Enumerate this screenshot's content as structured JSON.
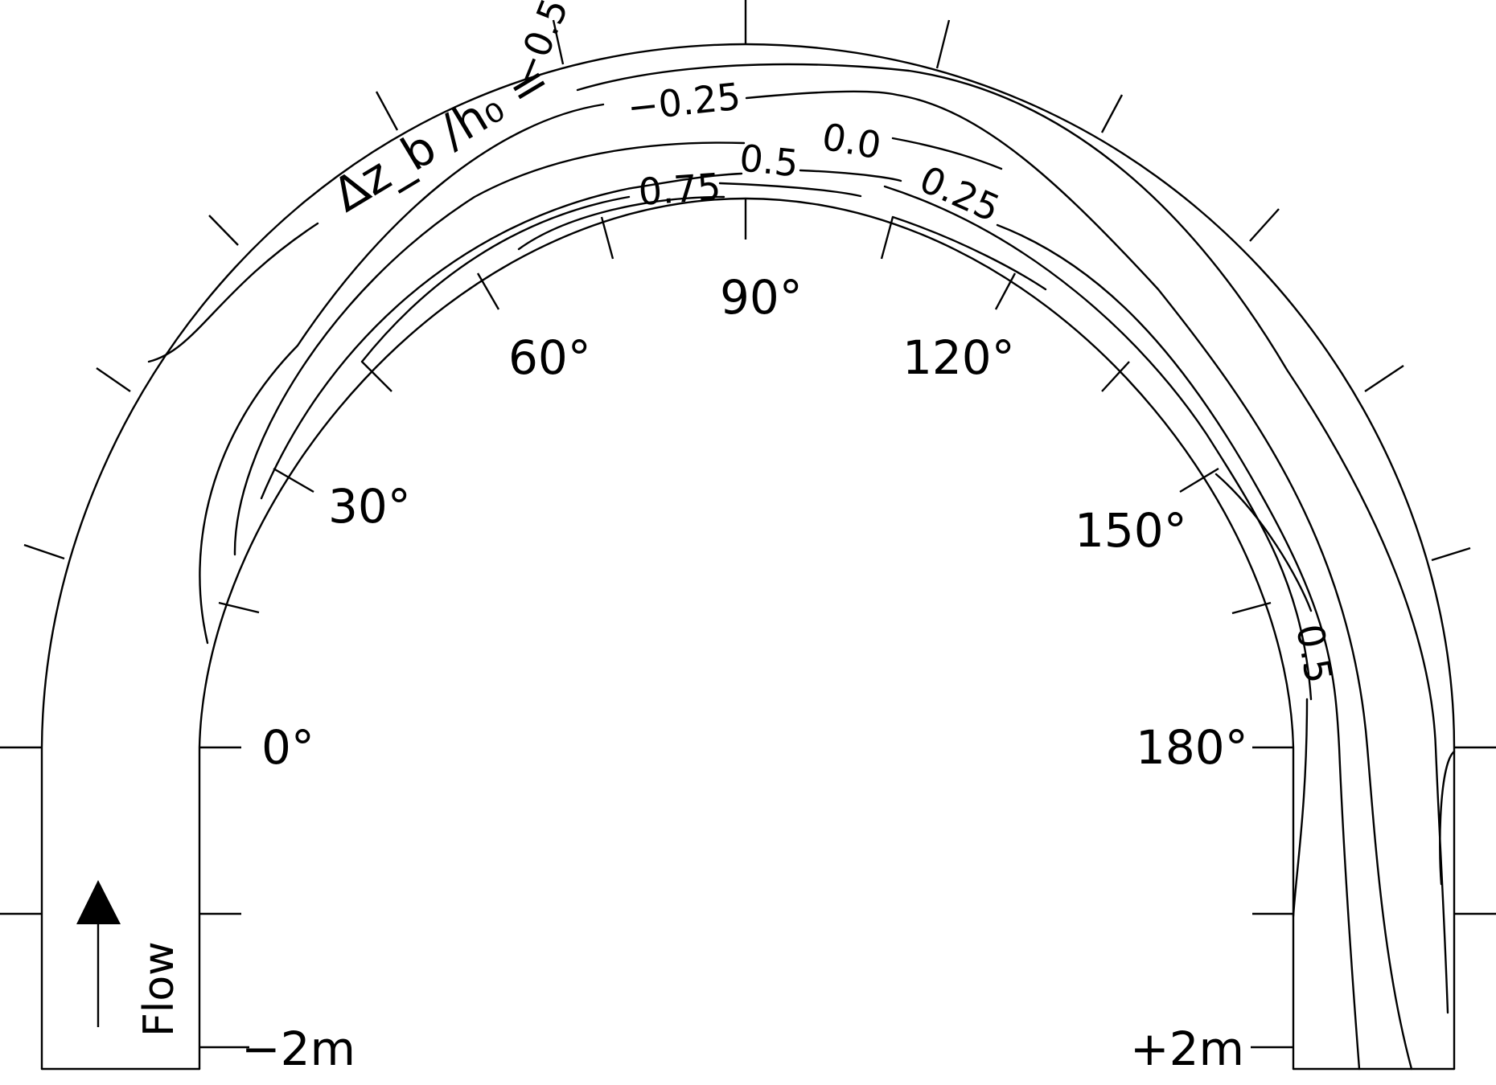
{
  "diagram": {
    "variable_label": "Δz_b /h₀ =",
    "angle_labels": [
      "0°",
      "30°",
      "60°",
      "90°",
      "120°",
      "150°",
      "180°"
    ],
    "distance_labels": {
      "left": "−2m",
      "right": "+2m"
    },
    "flow_label": "Flow",
    "contour_labels": {
      "c_neg05": "−0.5",
      "c_neg025": "−0.25",
      "c_00": "0.0",
      "c_05_top": "0.5",
      "c_025": "0.25",
      "c_075": "0.75",
      "c_05_right": "0.5"
    },
    "line_color": "#000000"
  }
}
